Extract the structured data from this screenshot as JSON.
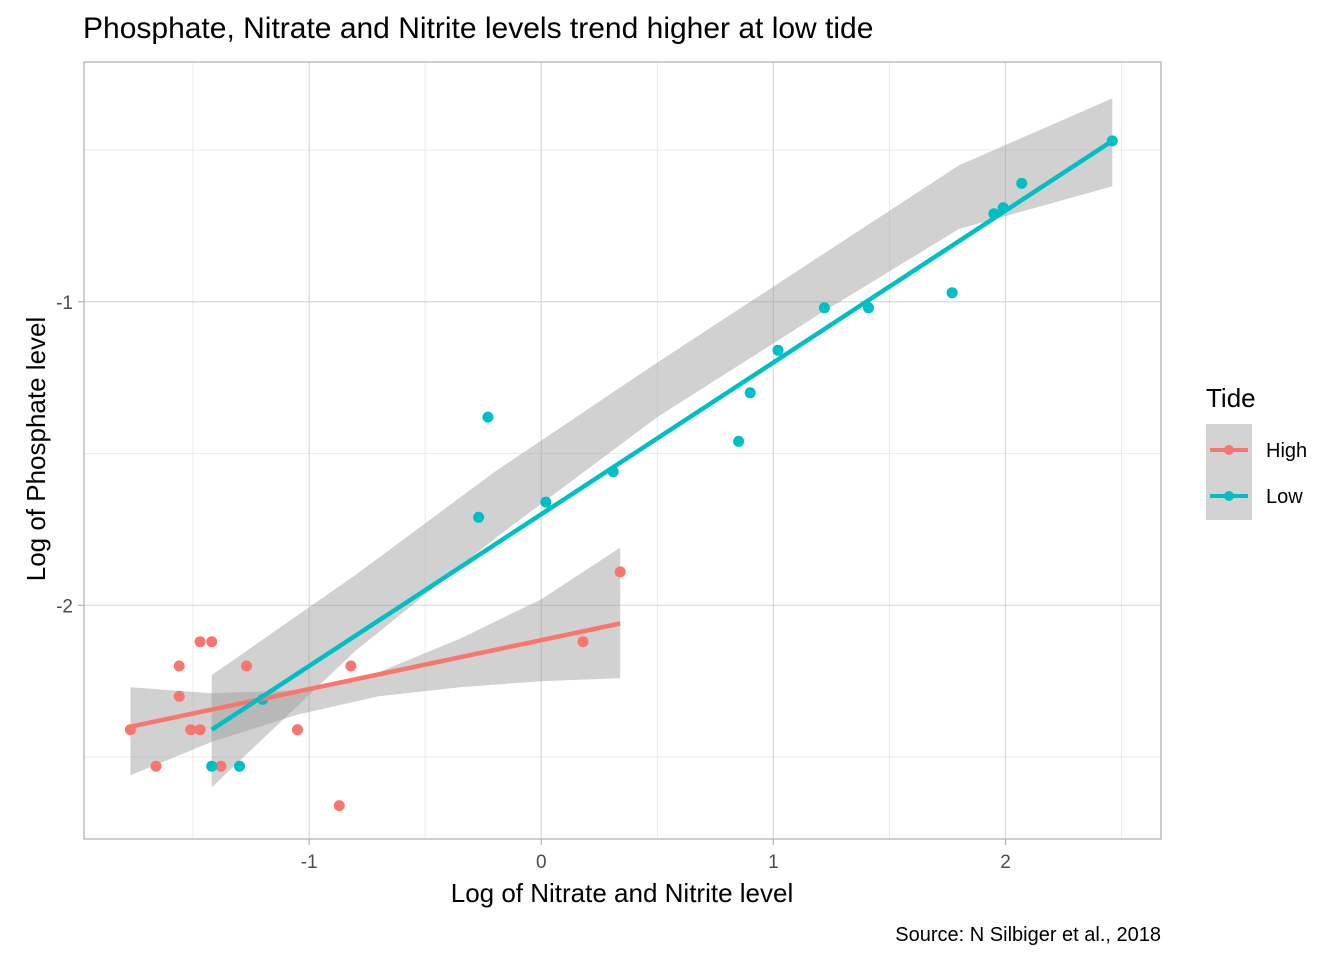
{
  "chart_data": {
    "type": "scatter",
    "title": "Phosphate, Nitrate and Nitrite levels trend higher at low tide",
    "xlabel": "Log of Nitrate and Nitrite level",
    "ylabel": "Log of Phosphate level",
    "caption": "Source: N Silbiger et al., 2018",
    "xlim": [
      -1.97,
      2.67
    ],
    "ylim": [
      -2.77,
      -0.21
    ],
    "x_ticks": [
      -1,
      0,
      1,
      2
    ],
    "x_tick_labels": [
      "-1",
      "0",
      "1",
      "2"
    ],
    "y_ticks": [
      -2,
      -1
    ],
    "y_tick_labels": [
      "-2",
      "-1"
    ],
    "grid": true,
    "legend": {
      "title": "Tide",
      "position": "right",
      "entries": [
        "High",
        "Low"
      ]
    },
    "colors": {
      "High": "#F8766D",
      "Low": "#00BFC4",
      "ribbon": "#999999",
      "panel_border": "#b3b3b3",
      "grid_major": "#d9d9d9",
      "grid_minor": "#ebebeb"
    },
    "series": [
      {
        "name": "High",
        "points": [
          {
            "x": -1.77,
            "y": -2.41
          },
          {
            "x": -1.66,
            "y": -2.53
          },
          {
            "x": -1.56,
            "y": -2.2
          },
          {
            "x": -1.56,
            "y": -2.3
          },
          {
            "x": -1.51,
            "y": -2.41
          },
          {
            "x": -1.47,
            "y": -2.41
          },
          {
            "x": -1.47,
            "y": -2.12
          },
          {
            "x": -1.42,
            "y": -2.12
          },
          {
            "x": -1.38,
            "y": -2.53
          },
          {
            "x": -1.27,
            "y": -2.2
          },
          {
            "x": -1.05,
            "y": -2.41
          },
          {
            "x": -0.87,
            "y": -2.66
          },
          {
            "x": -0.82,
            "y": -2.2
          },
          {
            "x": 0.18,
            "y": -2.12
          },
          {
            "x": 0.34,
            "y": -1.89
          }
        ],
        "fit": {
          "x": [
            -1.77,
            0.34
          ],
          "y": [
            -2.4,
            -2.06
          ]
        },
        "ribbon": {
          "x": [
            -1.77,
            -1.42,
            -1.05,
            -0.7,
            -0.35,
            0.0,
            0.34
          ],
          "lower": [
            -2.56,
            -2.45,
            -2.36,
            -2.3,
            -2.27,
            -2.25,
            -2.24
          ],
          "upper": [
            -2.27,
            -2.29,
            -2.28,
            -2.22,
            -2.11,
            -1.98,
            -1.81
          ]
        }
      },
      {
        "name": "Low",
        "points": [
          {
            "x": -1.42,
            "y": -2.53
          },
          {
            "x": -1.3,
            "y": -2.53
          },
          {
            "x": -1.2,
            "y": -2.31
          },
          {
            "x": -0.27,
            "y": -1.71
          },
          {
            "x": -0.23,
            "y": -1.38
          },
          {
            "x": 0.02,
            "y": -1.66
          },
          {
            "x": 0.31,
            "y": -1.56
          },
          {
            "x": 0.85,
            "y": -1.46
          },
          {
            "x": 0.9,
            "y": -1.3
          },
          {
            "x": 1.02,
            "y": -1.16
          },
          {
            "x": 1.22,
            "y": -1.02
          },
          {
            "x": 1.41,
            "y": -1.02
          },
          {
            "x": 1.77,
            "y": -0.97
          },
          {
            "x": 1.95,
            "y": -0.71
          },
          {
            "x": 1.99,
            "y": -0.69
          },
          {
            "x": 2.07,
            "y": -0.61
          },
          {
            "x": 2.46,
            "y": -0.47
          }
        ],
        "fit": {
          "x": [
            -1.42,
            2.46
          ],
          "y": [
            -2.41,
            -0.47
          ]
        },
        "ribbon": {
          "x": [
            -1.42,
            -0.8,
            -0.2,
            0.5,
            1.2,
            1.8,
            2.46
          ],
          "lower": [
            -2.6,
            -2.15,
            -1.78,
            -1.38,
            -1.04,
            -0.76,
            -0.62
          ],
          "upper": [
            -2.23,
            -1.9,
            -1.56,
            -1.2,
            -0.85,
            -0.55,
            -0.33
          ]
        }
      }
    ]
  }
}
